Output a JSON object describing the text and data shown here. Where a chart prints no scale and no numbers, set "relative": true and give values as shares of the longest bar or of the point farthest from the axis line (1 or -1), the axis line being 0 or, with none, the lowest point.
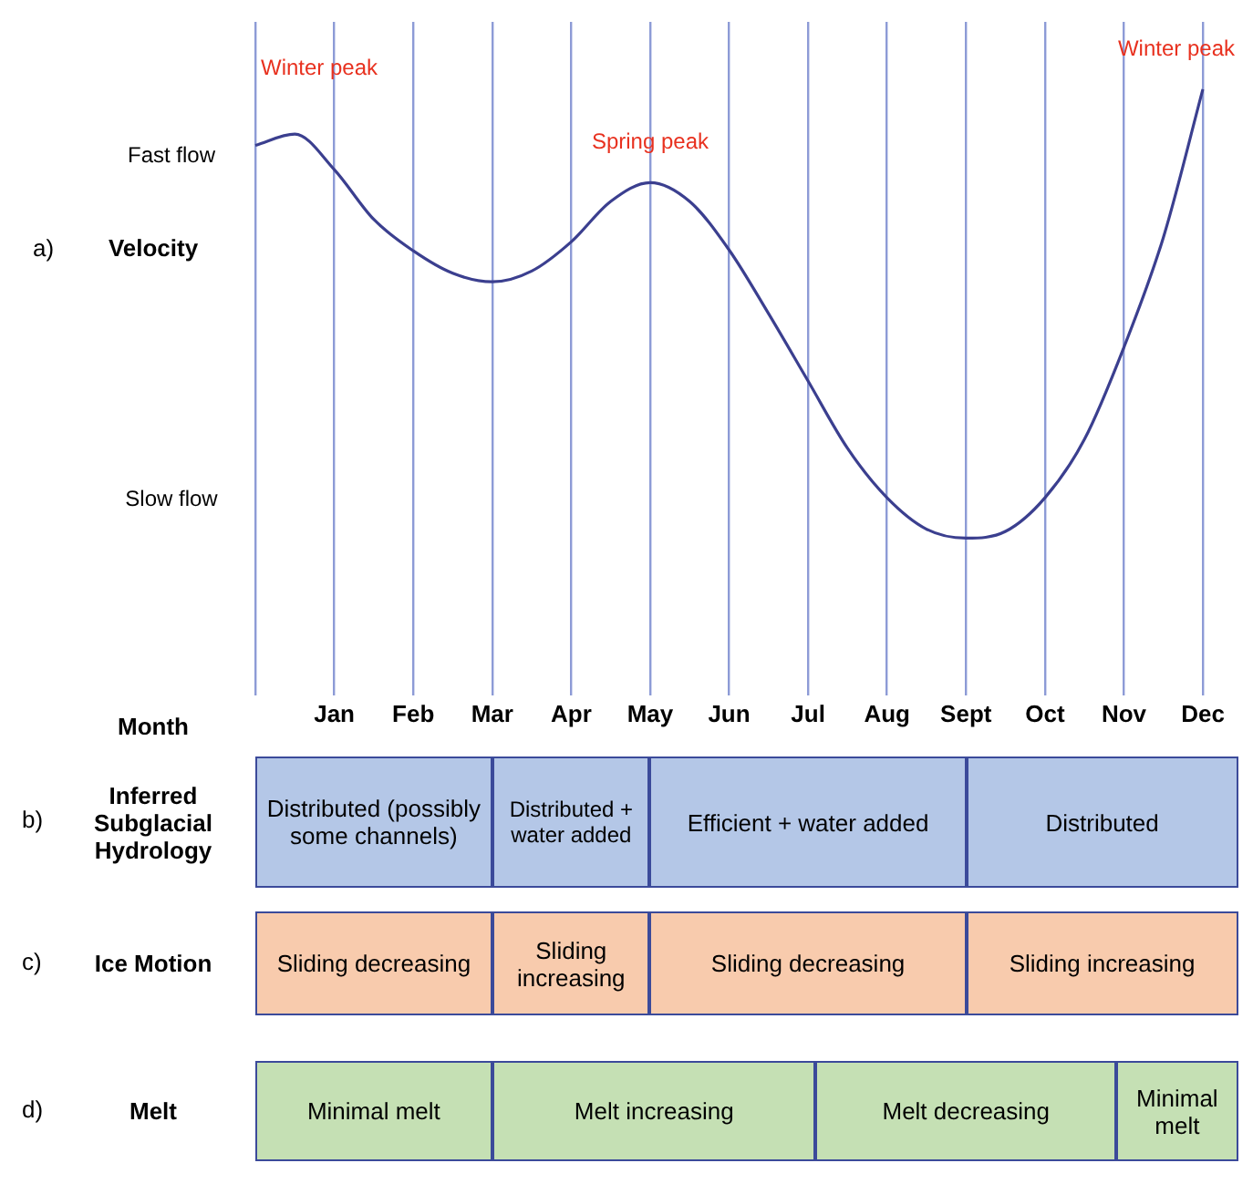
{
  "chart_data": [
    {
      "type": "line",
      "relative": true,
      "xlabel": "Month",
      "ylabel": "Velocity",
      "color": "#3b3f8f",
      "grid": "x",
      "categories": [
        null,
        null,
        "Jan",
        null,
        "Feb",
        null,
        "Mar",
        null,
        "Apr",
        null,
        "May",
        null,
        "Jun",
        null,
        "Jul",
        null,
        "Aug",
        null,
        "Sept",
        null,
        "Oct",
        null,
        "Nov",
        null,
        "Dec"
      ],
      "values": [
        0.875,
        0.9,
        0.821,
        0.71,
        0.64,
        0.59,
        0.571,
        0.595,
        0.66,
        0.75,
        0.792,
        0.75,
        0.642,
        0.5,
        0.35,
        0.2,
        0.09,
        0.02,
        0,
        0.015,
        0.09,
        0.22,
        0.425,
        0.67,
        1.0
      ],
      "annotations": [
        "a)",
        "Fast flow",
        "Slow flow",
        "Winter peak",
        {
          "text": "Spring peak",
          "x": "May",
          "y": 0.792
        },
        {
          "text": "Winter peak",
          "x": "Dec",
          "y": 1.0
        }
      ]
    },
    {
      "type": "other",
      "annotations": [
        "b)",
        "Inferred Subglacial Hydrology",
        "Distributed (possibly some channels)",
        "Distributed + water added",
        "Efficient + water added",
        "Distributed",
        "c)",
        "Ice Motion",
        "Sliding decreasing",
        "Sliding increasing",
        "Sliding decreasing",
        "Sliding increasing",
        "d)",
        "Melt",
        "Minimal melt",
        "Melt increasing",
        "Melt decreasing",
        "Minimal melt"
      ]
    }
  ]
}
